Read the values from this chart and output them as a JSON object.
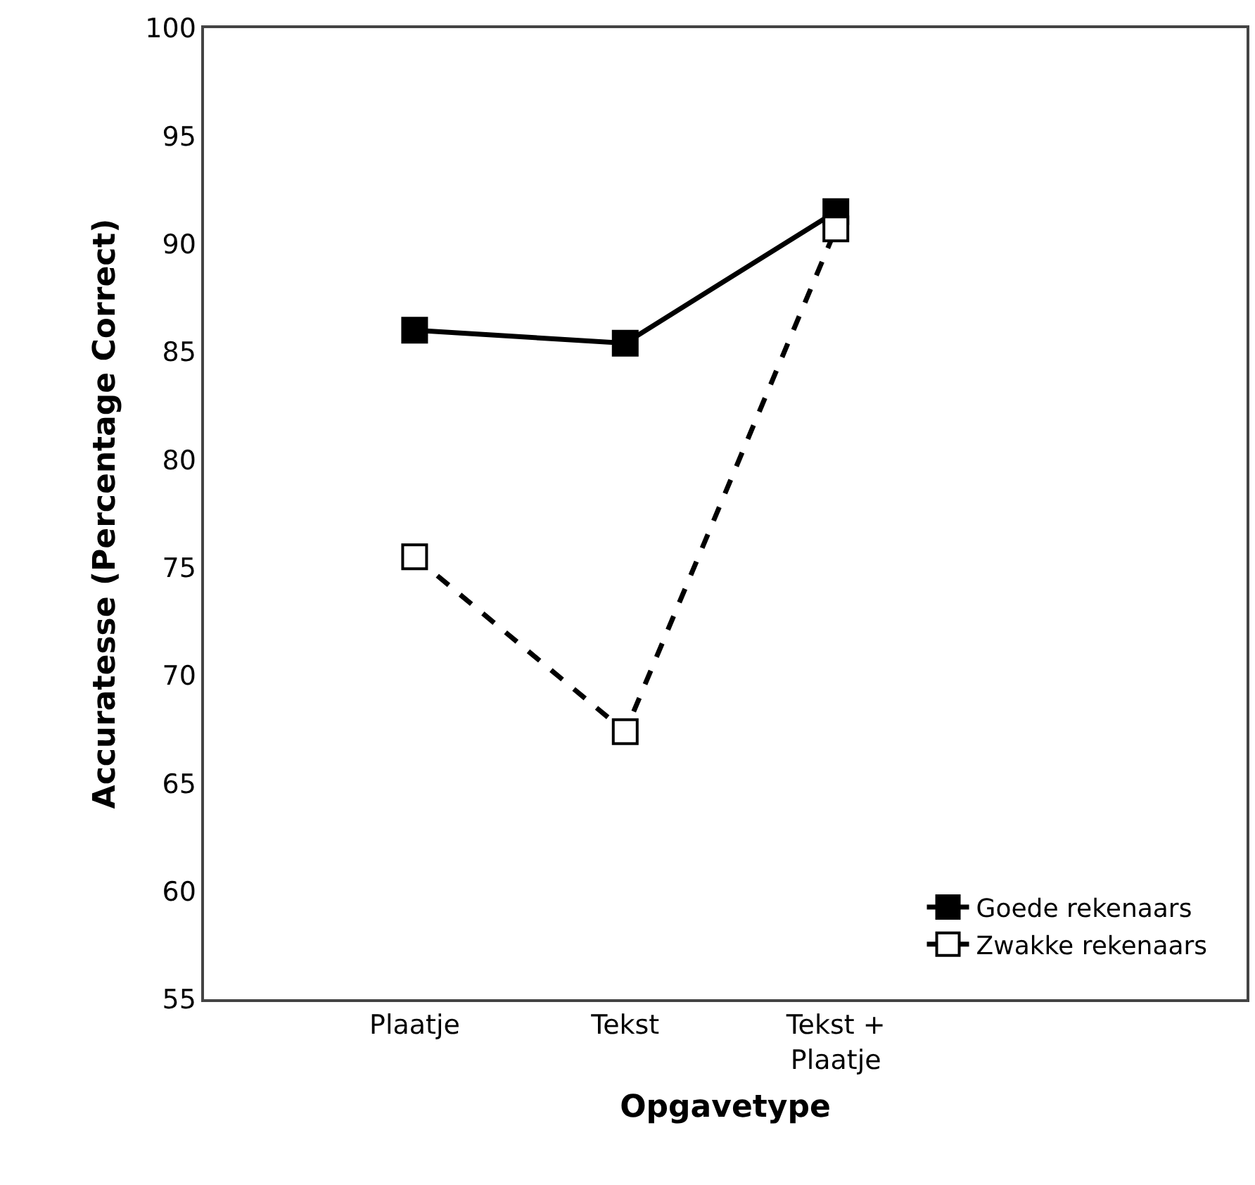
{
  "chart_data": {
    "type": "line",
    "xlabel": "Opgavetype",
    "ylabel": "Accuratesse (Percentage Correct)",
    "categories": [
      "Plaatje",
      "Tekst",
      "Tekst +\nPlaatje"
    ],
    "series": [
      {
        "name": "Goede rekenaars",
        "color": "#000000",
        "values": [
          86.0,
          85.4,
          91.5
        ],
        "marker": "square",
        "line_style": "solid"
      },
      {
        "name": "Zwakke rekenaars",
        "color": "#000000",
        "values": [
          75.5,
          67.4,
          90.7
        ],
        "marker": "square",
        "line_style": "dashed"
      }
    ],
    "ylim": [
      55,
      100
    ],
    "yticks": [
      55,
      60,
      65,
      70,
      75,
      80,
      85,
      90,
      95,
      100
    ],
    "legend": "bottom right"
  }
}
